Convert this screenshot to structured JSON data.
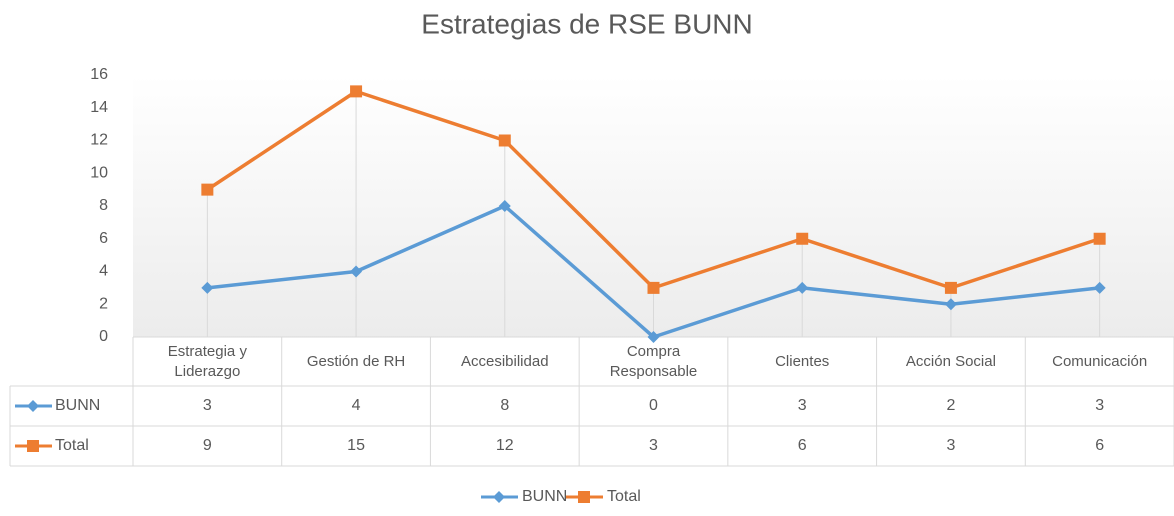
{
  "chart_data": {
    "type": "line",
    "title": "Estrategias de RSE BUNN",
    "categories": [
      "Estrategia y Liderazgo",
      "Gestión de RH",
      "Accesibilidad",
      "Compra Responsable",
      "Clientes",
      "Acción Social",
      "Comunicación"
    ],
    "series": [
      {
        "name": "BUNN",
        "color": "#5b9bd5",
        "marker": "diamond",
        "values": [
          3,
          4,
          8,
          0,
          3,
          2,
          3
        ]
      },
      {
        "name": "Total",
        "color": "#ed7d31",
        "marker": "square",
        "values": [
          9,
          15,
          12,
          3,
          6,
          3,
          6
        ]
      }
    ],
    "ylim": [
      0,
      16
    ],
    "yticks": [
      0,
      2,
      4,
      6,
      8,
      10,
      12,
      14,
      16
    ],
    "legend": "bottom",
    "drop_lines": true
  }
}
